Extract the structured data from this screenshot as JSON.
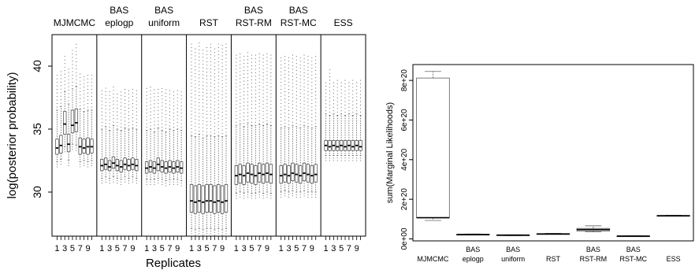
{
  "chart_data": [
    {
      "type": "boxplot",
      "ylabel": "log(posterior probability)",
      "xlabel": "Replicates",
      "ylim": [
        26.5,
        42.5
      ],
      "yticks": [
        30,
        35,
        40
      ],
      "x_tick_labels": [
        "1",
        "3",
        "5",
        "7",
        "9"
      ],
      "grid": false,
      "panels": [
        {
          "name": "MJMCMC",
          "replicates": [
            {
              "q1": 33.0,
              "median": 33.5,
              "q3": 34.2,
              "wlo": 32.4,
              "whi": 36.5,
              "outlier_max": 39.5
            },
            {
              "q1": 33.1,
              "median": 33.7,
              "q3": 34.5,
              "wlo": 32.6,
              "whi": 36.8,
              "outlier_max": 39.8
            },
            {
              "q1": 34.6,
              "median": 35.4,
              "q3": 36.4,
              "wlo": 33.6,
              "whi": 38.0,
              "outlier_max": 41.0
            },
            {
              "q1": 33.2,
              "median": 33.8,
              "q3": 34.6,
              "wlo": 32.5,
              "whi": 37.0,
              "outlier_max": 40.0
            },
            {
              "q1": 34.7,
              "median": 35.3,
              "q3": 36.5,
              "wlo": 33.8,
              "whi": 38.2,
              "outlier_max": 41.5
            },
            {
              "q1": 34.8,
              "median": 35.5,
              "q3": 36.6,
              "wlo": 33.7,
              "whi": 38.4,
              "outlier_max": 41.8
            },
            {
              "q1": 33.0,
              "median": 33.6,
              "q3": 34.3,
              "wlo": 32.4,
              "whi": 36.6,
              "outlier_max": 39.6
            },
            {
              "q1": 33.1,
              "median": 33.5,
              "q3": 34.2,
              "wlo": 32.5,
              "whi": 36.4,
              "outlier_max": 39.2
            },
            {
              "q1": 33.0,
              "median": 33.6,
              "q3": 34.3,
              "wlo": 32.4,
              "whi": 36.5,
              "outlier_max": 39.5
            },
            {
              "q1": 33.1,
              "median": 33.6,
              "q3": 34.2,
              "wlo": 32.5,
              "whi": 36.5,
              "outlier_max": 39.4
            }
          ]
        },
        {
          "name": "BAS\neplogp",
          "replicates": [
            {
              "q1": 31.7,
              "median": 32.1,
              "q3": 32.6,
              "wlo": 31.1,
              "whi": 35.0,
              "outlier_max": 38.2
            },
            {
              "q1": 31.8,
              "median": 32.2,
              "q3": 32.7,
              "wlo": 31.2,
              "whi": 35.2,
              "outlier_max": 38.3
            },
            {
              "q1": 31.7,
              "median": 32.0,
              "q3": 32.5,
              "wlo": 31.1,
              "whi": 34.9,
              "outlier_max": 38.1
            },
            {
              "q1": 31.9,
              "median": 32.3,
              "q3": 32.8,
              "wlo": 31.2,
              "whi": 35.3,
              "outlier_max": 38.4
            },
            {
              "q1": 31.7,
              "median": 32.1,
              "q3": 32.6,
              "wlo": 31.1,
              "whi": 35.0,
              "outlier_max": 38.0
            },
            {
              "q1": 31.6,
              "median": 32.0,
              "q3": 32.5,
              "wlo": 31.0,
              "whi": 34.9,
              "outlier_max": 38.2
            },
            {
              "q1": 31.8,
              "median": 32.2,
              "q3": 32.7,
              "wlo": 31.2,
              "whi": 35.1,
              "outlier_max": 38.3
            },
            {
              "q1": 31.7,
              "median": 32.1,
              "q3": 32.6,
              "wlo": 31.1,
              "whi": 35.0,
              "outlier_max": 38.1
            },
            {
              "q1": 31.8,
              "median": 32.2,
              "q3": 32.7,
              "wlo": 31.2,
              "whi": 35.1,
              "outlier_max": 38.2
            },
            {
              "q1": 31.7,
              "median": 32.1,
              "q3": 32.6,
              "wlo": 31.1,
              "whi": 35.0,
              "outlier_max": 38.2
            }
          ]
        },
        {
          "name": "BAS\nuniform",
          "replicates": [
            {
              "q1": 31.5,
              "median": 31.9,
              "q3": 32.4,
              "wlo": 31.0,
              "whi": 34.9,
              "outlier_max": 38.3
            },
            {
              "q1": 31.6,
              "median": 32.0,
              "q3": 32.5,
              "wlo": 31.0,
              "whi": 35.0,
              "outlier_max": 38.4
            },
            {
              "q1": 31.5,
              "median": 31.9,
              "q3": 32.4,
              "wlo": 31.0,
              "whi": 34.8,
              "outlier_max": 38.2
            },
            {
              "q1": 31.7,
              "median": 32.2,
              "q3": 32.7,
              "wlo": 31.1,
              "whi": 35.1,
              "outlier_max": 38.4
            },
            {
              "q1": 31.6,
              "median": 32.0,
              "q3": 32.5,
              "wlo": 31.0,
              "whi": 34.9,
              "outlier_max": 38.3
            },
            {
              "q1": 31.5,
              "median": 31.9,
              "q3": 32.4,
              "wlo": 30.9,
              "whi": 34.8,
              "outlier_max": 38.2
            },
            {
              "q1": 31.6,
              "median": 32.0,
              "q3": 32.5,
              "wlo": 31.0,
              "whi": 35.0,
              "outlier_max": 38.3
            },
            {
              "q1": 31.5,
              "median": 31.9,
              "q3": 32.4,
              "wlo": 31.0,
              "whi": 34.9,
              "outlier_max": 38.2
            },
            {
              "q1": 31.6,
              "median": 32.0,
              "q3": 32.5,
              "wlo": 31.0,
              "whi": 35.0,
              "outlier_max": 38.3
            },
            {
              "q1": 31.5,
              "median": 31.9,
              "q3": 32.4,
              "wlo": 30.9,
              "whi": 34.9,
              "outlier_max": 38.2
            }
          ]
        },
        {
          "name": "RST",
          "replicates": [
            {
              "q1": 28.4,
              "median": 29.3,
              "q3": 30.6,
              "wlo": 27.1,
              "whi": 34.5,
              "outlier_max": 41.8
            },
            {
              "q1": 28.3,
              "median": 29.2,
              "q3": 30.5,
              "wlo": 27.0,
              "whi": 34.4,
              "outlier_max": 41.6
            },
            {
              "q1": 28.4,
              "median": 29.3,
              "q3": 30.6,
              "wlo": 27.1,
              "whi": 34.6,
              "outlier_max": 41.9
            },
            {
              "q1": 28.3,
              "median": 29.2,
              "q3": 30.5,
              "wlo": 27.0,
              "whi": 34.3,
              "outlier_max": 41.5
            },
            {
              "q1": 28.4,
              "median": 29.3,
              "q3": 30.6,
              "wlo": 27.1,
              "whi": 34.5,
              "outlier_max": 41.7
            },
            {
              "q1": 28.4,
              "median": 29.3,
              "q3": 30.6,
              "wlo": 27.1,
              "whi": 34.5,
              "outlier_max": 41.8
            },
            {
              "q1": 28.3,
              "median": 29.2,
              "q3": 30.5,
              "wlo": 27.0,
              "whi": 34.4,
              "outlier_max": 41.6
            },
            {
              "q1": 28.4,
              "median": 29.3,
              "q3": 30.6,
              "wlo": 27.1,
              "whi": 34.5,
              "outlier_max": 41.8
            },
            {
              "q1": 28.3,
              "median": 29.2,
              "q3": 30.5,
              "wlo": 27.0,
              "whi": 34.4,
              "outlier_max": 41.7
            },
            {
              "q1": 28.4,
              "median": 29.3,
              "q3": 30.6,
              "wlo": 27.1,
              "whi": 34.5,
              "outlier_max": 41.8
            }
          ]
        },
        {
          "name": "BAS\nRST-RM",
          "replicates": [
            {
              "q1": 30.6,
              "median": 31.3,
              "q3": 32.1,
              "wlo": 29.9,
              "whi": 35.3,
              "outlier_max": 41.0
            },
            {
              "q1": 30.7,
              "median": 31.4,
              "q3": 32.2,
              "wlo": 30.0,
              "whi": 35.4,
              "outlier_max": 41.1
            },
            {
              "q1": 30.6,
              "median": 31.3,
              "q3": 32.1,
              "wlo": 29.9,
              "whi": 35.2,
              "outlier_max": 40.9
            },
            {
              "q1": 30.8,
              "median": 31.5,
              "q3": 32.3,
              "wlo": 30.0,
              "whi": 35.5,
              "outlier_max": 41.2
            },
            {
              "q1": 30.7,
              "median": 31.4,
              "q3": 32.2,
              "wlo": 29.9,
              "whi": 35.3,
              "outlier_max": 41.0
            },
            {
              "q1": 30.6,
              "median": 31.3,
              "q3": 32.1,
              "wlo": 29.9,
              "whi": 35.3,
              "outlier_max": 41.1
            },
            {
              "q1": 30.8,
              "median": 31.5,
              "q3": 32.3,
              "wlo": 30.0,
              "whi": 35.4,
              "outlier_max": 41.0
            },
            {
              "q1": 30.7,
              "median": 31.4,
              "q3": 32.2,
              "wlo": 29.9,
              "whi": 35.3,
              "outlier_max": 41.1
            },
            {
              "q1": 30.8,
              "median": 31.5,
              "q3": 32.3,
              "wlo": 30.0,
              "whi": 35.4,
              "outlier_max": 41.0
            },
            {
              "q1": 30.7,
              "median": 31.4,
              "q3": 32.2,
              "wlo": 29.9,
              "whi": 35.3,
              "outlier_max": 41.1
            }
          ]
        },
        {
          "name": "BAS\nRST-MC",
          "replicates": [
            {
              "q1": 30.7,
              "median": 31.3,
              "q3": 32.1,
              "wlo": 30.0,
              "whi": 35.1,
              "outlier_max": 40.8
            },
            {
              "q1": 30.8,
              "median": 31.4,
              "q3": 32.2,
              "wlo": 30.1,
              "whi": 35.2,
              "outlier_max": 40.9
            },
            {
              "q1": 30.7,
              "median": 31.3,
              "q3": 32.1,
              "wlo": 30.0,
              "whi": 35.1,
              "outlier_max": 40.8
            },
            {
              "q1": 30.9,
              "median": 31.5,
              "q3": 32.3,
              "wlo": 30.1,
              "whi": 35.3,
              "outlier_max": 41.0
            },
            {
              "q1": 30.8,
              "median": 31.4,
              "q3": 32.2,
              "wlo": 30.0,
              "whi": 35.2,
              "outlier_max": 40.9
            },
            {
              "q1": 30.7,
              "median": 31.3,
              "q3": 32.1,
              "wlo": 30.0,
              "whi": 35.1,
              "outlier_max": 40.8
            },
            {
              "q1": 30.9,
              "median": 31.5,
              "q3": 32.3,
              "wlo": 30.1,
              "whi": 35.3,
              "outlier_max": 40.9
            },
            {
              "q1": 30.8,
              "median": 31.4,
              "q3": 32.2,
              "wlo": 30.0,
              "whi": 35.2,
              "outlier_max": 40.8
            },
            {
              "q1": 30.7,
              "median": 31.3,
              "q3": 32.1,
              "wlo": 30.0,
              "whi": 35.1,
              "outlier_max": 40.9
            },
            {
              "q1": 30.8,
              "median": 31.4,
              "q3": 32.2,
              "wlo": 30.0,
              "whi": 35.2,
              "outlier_max": 40.8
            }
          ]
        },
        {
          "name": "ESS",
          "replicates": [
            {
              "q1": 33.3,
              "median": 33.7,
              "q3": 34.1,
              "wlo": 32.9,
              "whi": 36.2,
              "outlier_max": 38.9
            },
            {
              "q1": 33.3,
              "median": 33.6,
              "q3": 34.1,
              "wlo": 32.9,
              "whi": 36.1,
              "outlier_max": 39.9
            },
            {
              "q1": 33.3,
              "median": 33.7,
              "q3": 34.1,
              "wlo": 32.9,
              "whi": 36.2,
              "outlier_max": 38.9
            },
            {
              "q1": 33.3,
              "median": 33.6,
              "q3": 34.1,
              "wlo": 32.9,
              "whi": 36.1,
              "outlier_max": 39.0
            },
            {
              "q1": 33.3,
              "median": 33.7,
              "q3": 34.1,
              "wlo": 32.9,
              "whi": 36.2,
              "outlier_max": 38.9
            },
            {
              "q1": 33.3,
              "median": 33.6,
              "q3": 34.1,
              "wlo": 32.9,
              "whi": 36.1,
              "outlier_max": 39.0
            },
            {
              "q1": 33.3,
              "median": 33.7,
              "q3": 34.1,
              "wlo": 32.9,
              "whi": 36.2,
              "outlier_max": 38.9
            },
            {
              "q1": 33.3,
              "median": 33.6,
              "q3": 34.1,
              "wlo": 32.9,
              "whi": 36.1,
              "outlier_max": 39.0
            },
            {
              "q1": 33.3,
              "median": 33.7,
              "q3": 34.1,
              "wlo": 32.9,
              "whi": 36.2,
              "outlier_max": 38.9
            },
            {
              "q1": 33.3,
              "median": 33.6,
              "q3": 34.1,
              "wlo": 32.9,
              "whi": 36.1,
              "outlier_max": 39.0
            }
          ]
        }
      ]
    },
    {
      "type": "boxplot",
      "ylabel": "sum(Marginal Likelihoods)",
      "xlabel": "",
      "ylim": [
        -1e+19,
        8.8e+20
      ],
      "yticks": [
        0,
        2e+20,
        4e+20,
        6e+20,
        8e+20
      ],
      "ytick_labels": [
        "0e+00",
        "2e+20",
        "4e+20",
        "6e+20",
        "8e+20"
      ],
      "grid": false,
      "categories": [
        "MJMCMC",
        "BAS\neplogp",
        "BAS\nuniform",
        "RST",
        "BAS\nRST-RM",
        "BAS\nRST-MC",
        "ESS"
      ],
      "boxes": [
        {
          "wlo": 9.3e+19,
          "q1": 1.07e+20,
          "median": 1.07e+20,
          "q3": 8.12e+20,
          "whi": 8.45e+20
        },
        {
          "wlo": 2e+19,
          "q1": 2e+19,
          "median": 2.2e+19,
          "q3": 2.3e+19,
          "whi": 2.5e+19
        },
        {
          "wlo": 1.6e+19,
          "q1": 1.7e+19,
          "median": 1.9e+19,
          "q3": 2e+19,
          "whi": 2.1e+19
        },
        {
          "wlo": 2.3e+19,
          "q1": 2.4e+19,
          "median": 2.5e+19,
          "q3": 2.6e+19,
          "whi": 2.8e+19
        },
        {
          "wlo": 3.5e+19,
          "q1": 4e+19,
          "median": 4.7e+19,
          "q3": 5.3e+19,
          "whi": 6.6e+19
        },
        {
          "wlo": 1.2e+19,
          "q1": 1.3e+19,
          "median": 1.4e+19,
          "q3": 1.5e+19,
          "whi": 1.6e+19
        },
        {
          "wlo": 1.15e+20,
          "q1": 1.16e+20,
          "median": 1.17e+20,
          "q3": 1.18e+20,
          "whi": 1.19e+20
        }
      ]
    }
  ]
}
